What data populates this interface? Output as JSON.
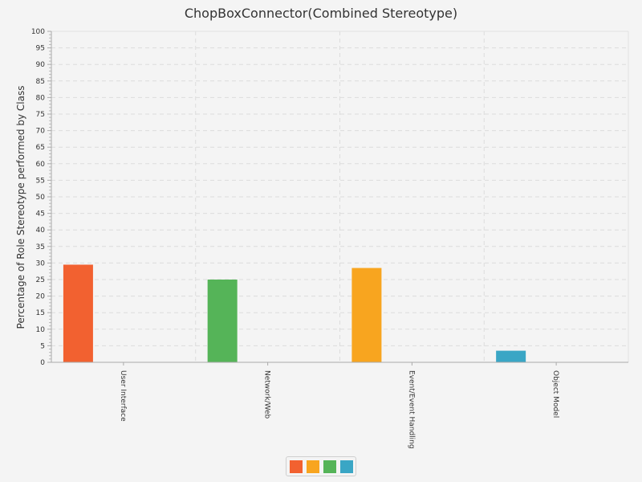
{
  "chart_data": {
    "type": "bar",
    "title": "ChopBoxConnector(Combined Stereotype)",
    "ylabel": "Percentage of Role Stereotype performed by Class",
    "xlabel": "",
    "categories": [
      "User Interface",
      "Network/Web",
      "Event/Event Handling",
      "Object Model"
    ],
    "series": [
      {
        "values": [
          29.5,
          0,
          0,
          0
        ],
        "color": "#f26130"
      },
      {
        "values": [
          0,
          0,
          28.5,
          0
        ],
        "color": "#f8a51f"
      },
      {
        "values": [
          0,
          25,
          0,
          0
        ],
        "color": "#55b458"
      },
      {
        "values": [
          0,
          0,
          0,
          3.5
        ],
        "color": "#3aa6c5"
      }
    ],
    "bars": [
      {
        "category": "User Interface",
        "value": 29.5,
        "color": "#f26130"
      },
      {
        "category": "Network/Web",
        "value": 25,
        "color": "#55b458"
      },
      {
        "category": "Event/Event Handling",
        "value": 28.5,
        "color": "#f8a51f"
      },
      {
        "category": "Object Model",
        "value": 3.5,
        "color": "#3aa6c5"
      }
    ],
    "ylim": [
      0,
      100
    ],
    "yticks": [
      0,
      5,
      10,
      15,
      20,
      25,
      30,
      35,
      40,
      45,
      50,
      55,
      60,
      65,
      70,
      75,
      80,
      85,
      90,
      95,
      100
    ],
    "grid": true,
    "legend_position": "bottom-center"
  }
}
